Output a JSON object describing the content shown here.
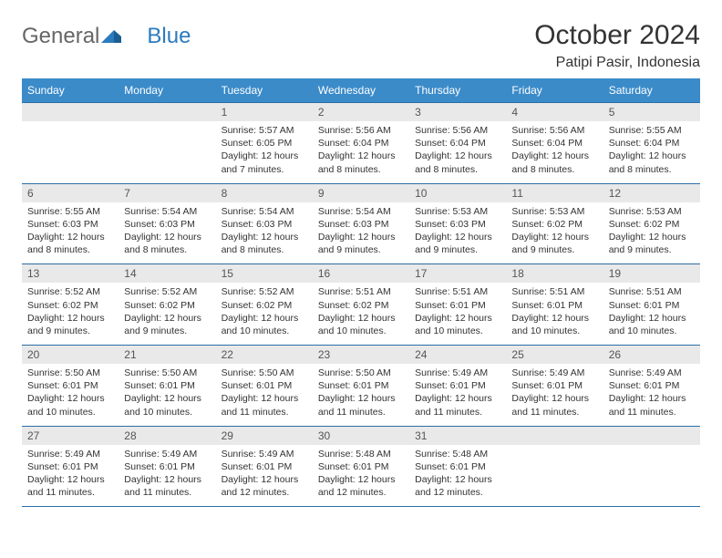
{
  "brand": {
    "part1": "General",
    "part2": "Blue"
  },
  "title": "October 2024",
  "location": "Patipi Pasir, Indonesia",
  "colors": {
    "header_bg": "#3b8bc9",
    "header_text": "#ffffff",
    "daynum_bg": "#e9e9e9",
    "rule": "#2b6ea6",
    "text": "#333333",
    "brand_gray": "#666666",
    "brand_blue": "#2b7bbf"
  },
  "day_names": [
    "Sunday",
    "Monday",
    "Tuesday",
    "Wednesday",
    "Thursday",
    "Friday",
    "Saturday"
  ],
  "weeks": [
    [
      null,
      null,
      {
        "n": "1",
        "sr": "Sunrise: 5:57 AM",
        "ss": "Sunset: 6:05 PM",
        "dl1": "Daylight: 12 hours",
        "dl2": "and 7 minutes."
      },
      {
        "n": "2",
        "sr": "Sunrise: 5:56 AM",
        "ss": "Sunset: 6:04 PM",
        "dl1": "Daylight: 12 hours",
        "dl2": "and 8 minutes."
      },
      {
        "n": "3",
        "sr": "Sunrise: 5:56 AM",
        "ss": "Sunset: 6:04 PM",
        "dl1": "Daylight: 12 hours",
        "dl2": "and 8 minutes."
      },
      {
        "n": "4",
        "sr": "Sunrise: 5:56 AM",
        "ss": "Sunset: 6:04 PM",
        "dl1": "Daylight: 12 hours",
        "dl2": "and 8 minutes."
      },
      {
        "n": "5",
        "sr": "Sunrise: 5:55 AM",
        "ss": "Sunset: 6:04 PM",
        "dl1": "Daylight: 12 hours",
        "dl2": "and 8 minutes."
      }
    ],
    [
      {
        "n": "6",
        "sr": "Sunrise: 5:55 AM",
        "ss": "Sunset: 6:03 PM",
        "dl1": "Daylight: 12 hours",
        "dl2": "and 8 minutes."
      },
      {
        "n": "7",
        "sr": "Sunrise: 5:54 AM",
        "ss": "Sunset: 6:03 PM",
        "dl1": "Daylight: 12 hours",
        "dl2": "and 8 minutes."
      },
      {
        "n": "8",
        "sr": "Sunrise: 5:54 AM",
        "ss": "Sunset: 6:03 PM",
        "dl1": "Daylight: 12 hours",
        "dl2": "and 8 minutes."
      },
      {
        "n": "9",
        "sr": "Sunrise: 5:54 AM",
        "ss": "Sunset: 6:03 PM",
        "dl1": "Daylight: 12 hours",
        "dl2": "and 9 minutes."
      },
      {
        "n": "10",
        "sr": "Sunrise: 5:53 AM",
        "ss": "Sunset: 6:03 PM",
        "dl1": "Daylight: 12 hours",
        "dl2": "and 9 minutes."
      },
      {
        "n": "11",
        "sr": "Sunrise: 5:53 AM",
        "ss": "Sunset: 6:02 PM",
        "dl1": "Daylight: 12 hours",
        "dl2": "and 9 minutes."
      },
      {
        "n": "12",
        "sr": "Sunrise: 5:53 AM",
        "ss": "Sunset: 6:02 PM",
        "dl1": "Daylight: 12 hours",
        "dl2": "and 9 minutes."
      }
    ],
    [
      {
        "n": "13",
        "sr": "Sunrise: 5:52 AM",
        "ss": "Sunset: 6:02 PM",
        "dl1": "Daylight: 12 hours",
        "dl2": "and 9 minutes."
      },
      {
        "n": "14",
        "sr": "Sunrise: 5:52 AM",
        "ss": "Sunset: 6:02 PM",
        "dl1": "Daylight: 12 hours",
        "dl2": "and 9 minutes."
      },
      {
        "n": "15",
        "sr": "Sunrise: 5:52 AM",
        "ss": "Sunset: 6:02 PM",
        "dl1": "Daylight: 12 hours",
        "dl2": "and 10 minutes."
      },
      {
        "n": "16",
        "sr": "Sunrise: 5:51 AM",
        "ss": "Sunset: 6:02 PM",
        "dl1": "Daylight: 12 hours",
        "dl2": "and 10 minutes."
      },
      {
        "n": "17",
        "sr": "Sunrise: 5:51 AM",
        "ss": "Sunset: 6:01 PM",
        "dl1": "Daylight: 12 hours",
        "dl2": "and 10 minutes."
      },
      {
        "n": "18",
        "sr": "Sunrise: 5:51 AM",
        "ss": "Sunset: 6:01 PM",
        "dl1": "Daylight: 12 hours",
        "dl2": "and 10 minutes."
      },
      {
        "n": "19",
        "sr": "Sunrise: 5:51 AM",
        "ss": "Sunset: 6:01 PM",
        "dl1": "Daylight: 12 hours",
        "dl2": "and 10 minutes."
      }
    ],
    [
      {
        "n": "20",
        "sr": "Sunrise: 5:50 AM",
        "ss": "Sunset: 6:01 PM",
        "dl1": "Daylight: 12 hours",
        "dl2": "and 10 minutes."
      },
      {
        "n": "21",
        "sr": "Sunrise: 5:50 AM",
        "ss": "Sunset: 6:01 PM",
        "dl1": "Daylight: 12 hours",
        "dl2": "and 10 minutes."
      },
      {
        "n": "22",
        "sr": "Sunrise: 5:50 AM",
        "ss": "Sunset: 6:01 PM",
        "dl1": "Daylight: 12 hours",
        "dl2": "and 11 minutes."
      },
      {
        "n": "23",
        "sr": "Sunrise: 5:50 AM",
        "ss": "Sunset: 6:01 PM",
        "dl1": "Daylight: 12 hours",
        "dl2": "and 11 minutes."
      },
      {
        "n": "24",
        "sr": "Sunrise: 5:49 AM",
        "ss": "Sunset: 6:01 PM",
        "dl1": "Daylight: 12 hours",
        "dl2": "and 11 minutes."
      },
      {
        "n": "25",
        "sr": "Sunrise: 5:49 AM",
        "ss": "Sunset: 6:01 PM",
        "dl1": "Daylight: 12 hours",
        "dl2": "and 11 minutes."
      },
      {
        "n": "26",
        "sr": "Sunrise: 5:49 AM",
        "ss": "Sunset: 6:01 PM",
        "dl1": "Daylight: 12 hours",
        "dl2": "and 11 minutes."
      }
    ],
    [
      {
        "n": "27",
        "sr": "Sunrise: 5:49 AM",
        "ss": "Sunset: 6:01 PM",
        "dl1": "Daylight: 12 hours",
        "dl2": "and 11 minutes."
      },
      {
        "n": "28",
        "sr": "Sunrise: 5:49 AM",
        "ss": "Sunset: 6:01 PM",
        "dl1": "Daylight: 12 hours",
        "dl2": "and 11 minutes."
      },
      {
        "n": "29",
        "sr": "Sunrise: 5:49 AM",
        "ss": "Sunset: 6:01 PM",
        "dl1": "Daylight: 12 hours",
        "dl2": "and 12 minutes."
      },
      {
        "n": "30",
        "sr": "Sunrise: 5:48 AM",
        "ss": "Sunset: 6:01 PM",
        "dl1": "Daylight: 12 hours",
        "dl2": "and 12 minutes."
      },
      {
        "n": "31",
        "sr": "Sunrise: 5:48 AM",
        "ss": "Sunset: 6:01 PM",
        "dl1": "Daylight: 12 hours",
        "dl2": "and 12 minutes."
      },
      null,
      null
    ]
  ]
}
